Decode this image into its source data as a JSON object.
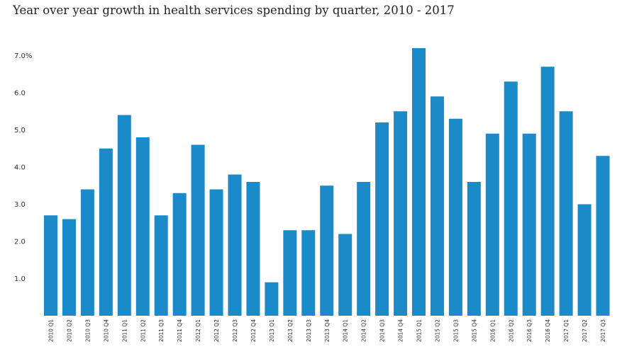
{
  "chart_data": {
    "type": "bar",
    "title": "Year over year growth in health services spending by quarter, 2010 - 2017",
    "xlabel": "",
    "ylabel": "",
    "ylim": [
      0,
      7.5
    ],
    "grid": false,
    "color": "#1a8ac9",
    "yticks": [
      {
        "value": 1,
        "label": "1.0"
      },
      {
        "value": 2,
        "label": "2.0"
      },
      {
        "value": 3,
        "label": "3.0"
      },
      {
        "value": 4,
        "label": "4.0"
      },
      {
        "value": 5,
        "label": "5.0"
      },
      {
        "value": 6,
        "label": "6.0"
      },
      {
        "value": 7,
        "label": "7.0%"
      }
    ],
    "categories": [
      "2010 Q1",
      "2010 Q2",
      "2010 Q3",
      "2010 Q4",
      "2011 Q1",
      "2011 Q2",
      "2011 Q3",
      "2011 Q4",
      "2012 Q1",
      "2012 Q2",
      "2012 Q3",
      "2012 Q4",
      "2013 Q1",
      "2013 Q2",
      "2013 Q3",
      "2013 Q4",
      "2014 Q1",
      "2014 Q2",
      "2014 Q3",
      "2014 Q4",
      "2015 Q1",
      "2015 Q2",
      "2015 Q3",
      "2015 Q4",
      "2016 Q1",
      "2016 Q2",
      "2016 Q3",
      "2016 Q4",
      "2017 Q1",
      "2017 Q2",
      "2017 Q3"
    ],
    "values": [
      2.7,
      2.6,
      3.4,
      4.5,
      5.4,
      4.8,
      2.7,
      3.3,
      4.6,
      3.4,
      3.8,
      3.6,
      0.9,
      2.3,
      2.3,
      3.5,
      2.2,
      3.6,
      5.2,
      5.5,
      7.2,
      5.9,
      5.3,
      3.6,
      4.9,
      6.3,
      4.9,
      6.7,
      5.5,
      3.0,
      4.3
    ]
  }
}
